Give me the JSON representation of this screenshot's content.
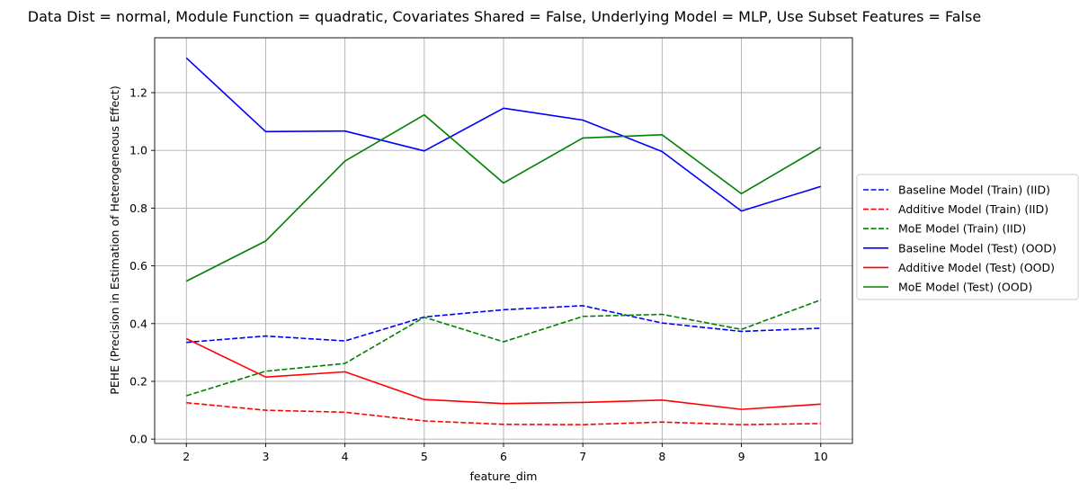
{
  "chart_data": {
    "type": "line",
    "title": "Data Dist = normal, Module Function = quadratic, Covariates Shared = False, Underlying Model = MLP, Use Subset Features = False",
    "xlabel": "feature_dim",
    "ylabel": "PEHE (Precision in Estimation of Heterogeneous Effect)",
    "x": [
      2,
      3,
      4,
      5,
      6,
      7,
      8,
      9,
      10
    ],
    "xticks": [
      "2",
      "3",
      "4",
      "5",
      "6",
      "7",
      "8",
      "9",
      "10"
    ],
    "yticks": [
      "0.0",
      "0.2",
      "0.4",
      "0.6",
      "0.8",
      "1.0",
      "1.2"
    ],
    "xlim": [
      1.6,
      10.4
    ],
    "ylim": [
      -0.015,
      1.39
    ],
    "grid": true,
    "legend_position": "center-right, outside plot",
    "series": [
      {
        "name": "Baseline Model (Train) (IID)",
        "color": "#0000ff",
        "style": "dashed",
        "values": [
          0.335,
          0.357,
          0.34,
          0.423,
          0.448,
          0.462,
          0.402,
          0.373,
          0.384
        ]
      },
      {
        "name": "Additive Model (Train) (IID)",
        "color": "#ff0000",
        "style": "dashed",
        "values": [
          0.126,
          0.1,
          0.093,
          0.063,
          0.051,
          0.05,
          0.059,
          0.05,
          0.054
        ]
      },
      {
        "name": "MoE Model (Train) (IID)",
        "color": "#008000",
        "style": "dashed",
        "values": [
          0.15,
          0.235,
          0.262,
          0.422,
          0.337,
          0.425,
          0.432,
          0.38,
          0.482
        ]
      },
      {
        "name": "Baseline Model (Test) (OOD)",
        "color": "#0000ff",
        "style": "solid",
        "values": [
          1.32,
          1.065,
          1.067,
          0.998,
          1.146,
          1.105,
          0.996,
          0.79,
          0.875
        ]
      },
      {
        "name": "Additive Model (Test) (OOD)",
        "color": "#ff0000",
        "style": "solid",
        "values": [
          0.348,
          0.215,
          0.233,
          0.137,
          0.123,
          0.127,
          0.135,
          0.103,
          0.121
        ]
      },
      {
        "name": "MoE Model (Test) (OOD)",
        "color": "#008000",
        "style": "solid",
        "values": [
          0.547,
          0.686,
          0.963,
          1.123,
          0.887,
          1.043,
          1.054,
          0.85,
          1.011
        ]
      }
    ]
  }
}
